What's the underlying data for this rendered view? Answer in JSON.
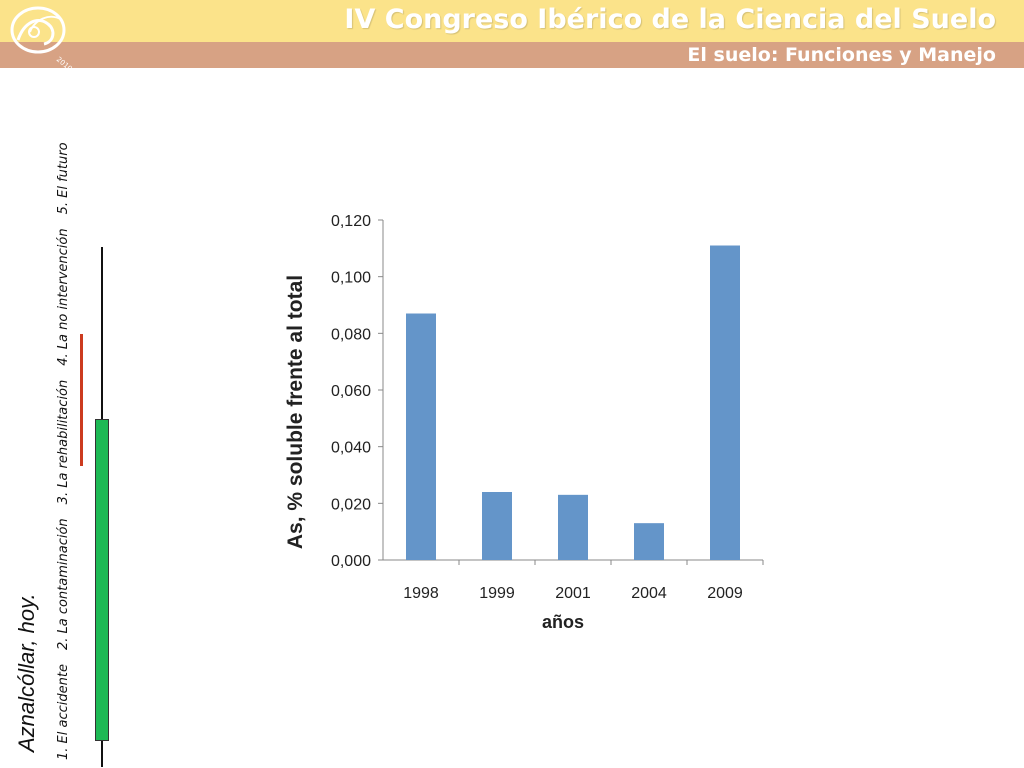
{
  "header": {
    "title": "IV Congreso Ibérico de la Ciencia del Suelo",
    "subtitle": "El suelo: Funciones y Manejo",
    "logo_year": "2010"
  },
  "sidebar": {
    "heading": "Aznalcóllar, hoy.",
    "items": [
      {
        "label": "1. El accidente"
      },
      {
        "label": "2. La contaminación"
      },
      {
        "label": "3. La rehabilitación"
      },
      {
        "label": "4. La no intervención"
      },
      {
        "label": "5. El futuro"
      }
    ]
  },
  "colors": {
    "band_top": "#fbe38a",
    "band_bottom": "#d7a284",
    "bar": "#6495c9",
    "progress_green": "#1db954",
    "progress_red": "#cc3b1f"
  },
  "chart_data": {
    "type": "bar",
    "categories": [
      "1998",
      "1999",
      "2001",
      "2004",
      "2009"
    ],
    "values": [
      0.087,
      0.024,
      0.023,
      0.013,
      0.111
    ],
    "title": "",
    "xlabel": "años",
    "ylabel": "As, % soluble frente al total",
    "ylim": [
      0,
      0.12
    ],
    "yticks": [
      "0,000",
      "0,020",
      "0,040",
      "0,060",
      "0,080",
      "0,100",
      "0,120"
    ],
    "grid": false,
    "legend": "none"
  }
}
